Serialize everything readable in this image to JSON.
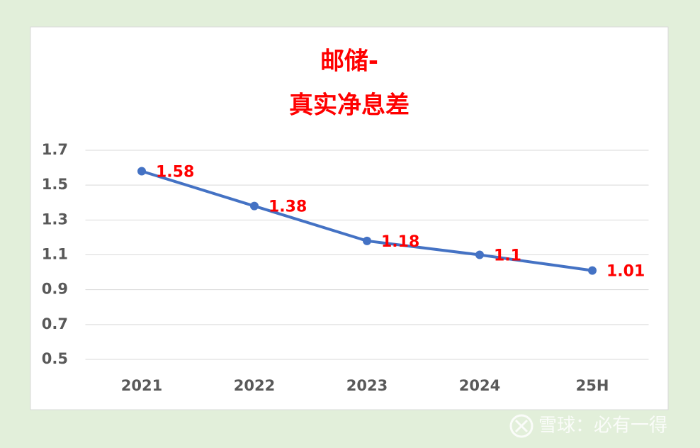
{
  "chart_data": {
    "type": "line",
    "title": [
      "邮储-",
      "真实净息差"
    ],
    "categories": [
      "2021",
      "2022",
      "2023",
      "2024",
      "25H"
    ],
    "series": [
      {
        "name": "真实净息差",
        "color": "#4472c4",
        "values": [
          1.58,
          1.38,
          1.18,
          1.1,
          1.01
        ]
      }
    ],
    "ylim": [
      0.5,
      1.7
    ],
    "yticks": [
      0.5,
      0.7,
      0.9,
      1.1,
      1.3,
      1.5,
      1.7
    ],
    "grid": true,
    "label_color": "#ff0000"
  },
  "watermark": "雪球：必有一得"
}
